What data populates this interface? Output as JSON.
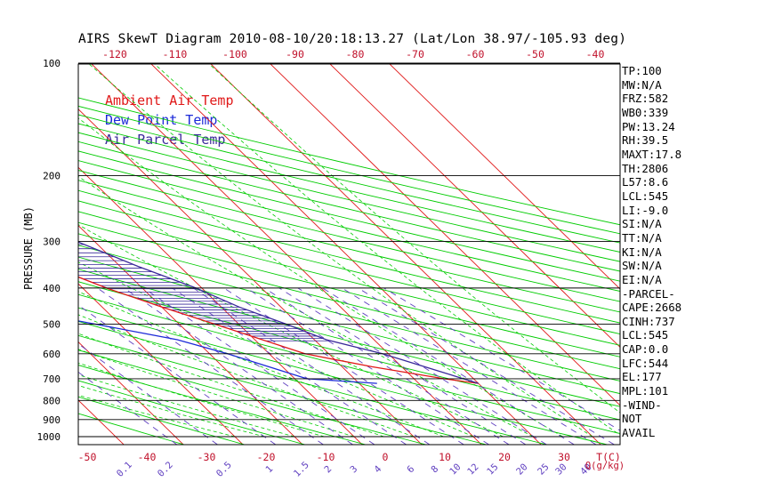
{
  "title": "AIRS SkewT Diagram 2010-08-10/20:18:13.27 (Lat/Lon 38.97/-105.93 deg)",
  "legend": [
    {
      "label": "Ambient Air Temp",
      "color": "#e01818"
    },
    {
      "label": "Dew Point Temp",
      "color": "#1c2ad8"
    },
    {
      "label": "Air Parcel Temp",
      "color": "#3a2a9a"
    }
  ],
  "stats": [
    "TP:100",
    "MW:N/A",
    "FRZ:582",
    "WB0:339",
    "PW:13.24",
    "RH:39.5",
    "MAXT:17.8",
    "TH:2806",
    "L57:8.6",
    "LCL:545",
    "LI:-9.0",
    "SI:N/A",
    "TT:N/A",
    "KI:N/A",
    "SW:N/A",
    "EI:N/A",
    "-PARCEL-",
    "CAPE:2668",
    "CINH:737",
    "LCL:545",
    "CAP:0.0",
    "LFC:544",
    "EL:177",
    "MPL:101",
    "-WIND-",
    "NOT",
    "AVAIL"
  ],
  "colors": {
    "temp": "#e01818",
    "dew": "#1c2ad8",
    "parcel": "#3a2a9a",
    "isotherm": "#e01818",
    "dry_adiabat": "#00cc00",
    "moist_adiabat": "#00cc00",
    "mixing_ratio": "#6040c0",
    "axis_text": "#c0102a",
    "grid": "#000000"
  },
  "chart_data": {
    "type": "line",
    "title": "AIRS SkewT Diagram 2010-08-10/20:18:13.27 (Lat/Lon 38.97/-105.93 deg)",
    "ylabel": "PRESSURE (MB)",
    "xlabel": "T(C)",
    "y_scale": "log",
    "ylim": [
      1050,
      100
    ],
    "pressure_ticks": [
      100,
      200,
      300,
      400,
      500,
      600,
      700,
      800,
      900,
      1000
    ],
    "bottom_temp_ticks": [
      "-50",
      "-40",
      "-30",
      "-20",
      "-10",
      "0",
      "10",
      "20",
      "30",
      "T(C)"
    ],
    "top_temp_ticks": [
      "-120",
      "-110",
      "-100",
      "-90",
      "-80",
      "-70",
      "-60",
      "-50",
      "-40"
    ],
    "mixing_ratio_labels": [
      "0.1",
      "0.2",
      "0.5",
      "1",
      "1.5",
      "2",
      "3",
      "4",
      "6",
      "8",
      "10",
      "12",
      "15",
      "20",
      "25",
      "30",
      "40",
      "Q(g/kg)"
    ],
    "series": [
      {
        "name": "Ambient Air Temp",
        "points": [
          [
            100,
            -66
          ],
          [
            150,
            -66
          ],
          [
            160,
            -66.5
          ],
          [
            200,
            -66.5
          ],
          [
            250,
            -47
          ],
          [
            300,
            -38
          ],
          [
            400,
            -26
          ],
          [
            450,
            -20
          ],
          [
            500,
            -14
          ],
          [
            600,
            -4
          ],
          [
            650,
            5
          ],
          [
            700,
            15
          ],
          [
            720,
            20
          ]
        ]
      },
      {
        "name": "Dew Point Temp",
        "points": [
          [
            100,
            -90
          ],
          [
            150,
            -102
          ],
          [
            200,
            -110
          ],
          [
            250,
            -99
          ],
          [
            300,
            -91
          ],
          [
            400,
            -60
          ],
          [
            500,
            -34
          ],
          [
            550,
            -23
          ],
          [
            600,
            -17
          ],
          [
            700,
            -8
          ],
          [
            720,
            3
          ]
        ]
      },
      {
        "name": "Air Parcel Temp",
        "points": [
          [
            100,
            -82
          ],
          [
            150,
            -70
          ],
          [
            200,
            -50
          ],
          [
            250,
            -34
          ],
          [
            300,
            -23
          ],
          [
            350,
            -17
          ],
          [
            400,
            -11
          ],
          [
            450,
            -7
          ],
          [
            500,
            -2
          ],
          [
            550,
            2
          ],
          [
            600,
            9
          ],
          [
            720,
            20
          ]
        ]
      }
    ]
  }
}
